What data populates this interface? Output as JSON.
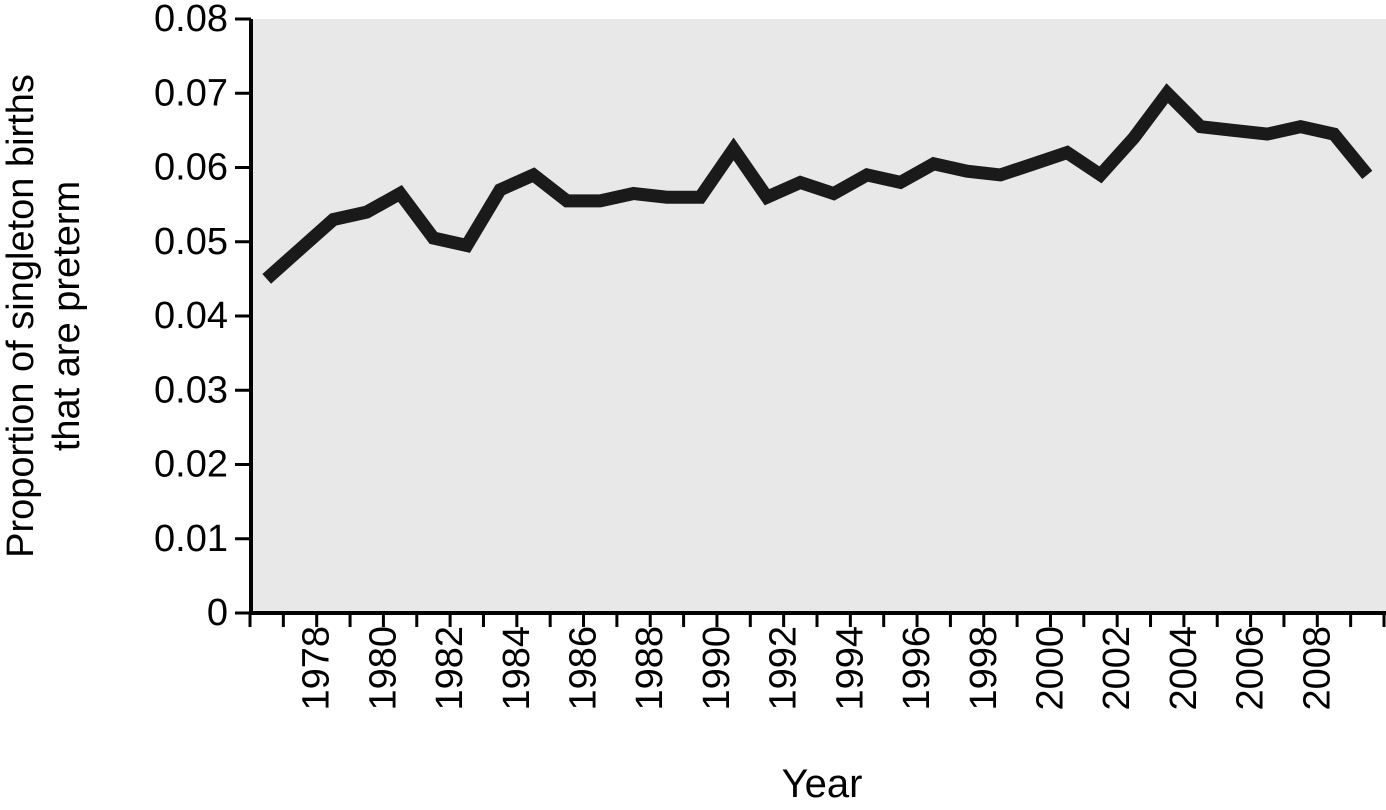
{
  "figure": {
    "xlabel": "Year",
    "ylabel_line1": "Proportion of singleton births",
    "ylabel_line2": "that are preterm"
  },
  "chart_data": {
    "type": "line",
    "title": "",
    "xlabel": "Year",
    "ylabel": "Proportion of singleton births that are preterm",
    "years": [
      1977,
      1978,
      1979,
      1980,
      1981,
      1982,
      1983,
      1984,
      1985,
      1986,
      1987,
      1988,
      1989,
      1990,
      1991,
      1992,
      1993,
      1994,
      1995,
      1996,
      1997,
      1998,
      1999,
      2000,
      2001,
      2002,
      2003,
      2004,
      2005,
      2006,
      2007,
      2008,
      2009,
      2010
    ],
    "values": [
      0.045,
      0.049,
      0.053,
      0.054,
      0.0565,
      0.0505,
      0.0495,
      0.057,
      0.059,
      0.0555,
      0.0555,
      0.0565,
      0.056,
      0.056,
      0.0625,
      0.056,
      0.058,
      0.0565,
      0.059,
      0.058,
      0.0605,
      0.0595,
      0.059,
      0.0605,
      0.062,
      0.059,
      0.064,
      0.07,
      0.0655,
      0.065,
      0.0645,
      0.0655,
      0.0645,
      0.059
    ],
    "series_name": "Proportion of singleton births that are preterm",
    "ylim": [
      0,
      0.08
    ],
    "yticks": [
      {
        "value": 0,
        "label": "0"
      },
      {
        "value": 0.01,
        "label": "0.01"
      },
      {
        "value": 0.02,
        "label": "0.02"
      },
      {
        "value": 0.03,
        "label": "0.03"
      },
      {
        "value": 0.04,
        "label": "0.04"
      },
      {
        "value": 0.05,
        "label": "0.05"
      },
      {
        "value": 0.06,
        "label": "0.06"
      },
      {
        "value": 0.07,
        "label": "0.07"
      },
      {
        "value": 0.08,
        "label": "0.08"
      }
    ],
    "x_axis_first_boundary_year": 1976,
    "x_axis_last_boundary_year": 2010,
    "xtick_labeled_years": [
      1978,
      1980,
      1982,
      1984,
      1986,
      1988,
      1990,
      1992,
      1994,
      1996,
      1998,
      2000,
      2002,
      2004,
      2006,
      2008
    ],
    "xtick_labels": [
      "1978",
      "1980",
      "1982",
      "1984",
      "1986",
      "1988",
      "1990",
      "1992",
      "1994",
      "1996",
      "1998",
      "2000",
      "2002",
      "2004",
      "2006",
      "2008"
    ],
    "grid": false,
    "legend": "none",
    "x_label_rotation_deg": -90,
    "plot_bg": "#e8e8e8",
    "line_color": "#1a1a1a",
    "axis_color": "#000000",
    "text_color": "#000000",
    "line_width": 13
  }
}
